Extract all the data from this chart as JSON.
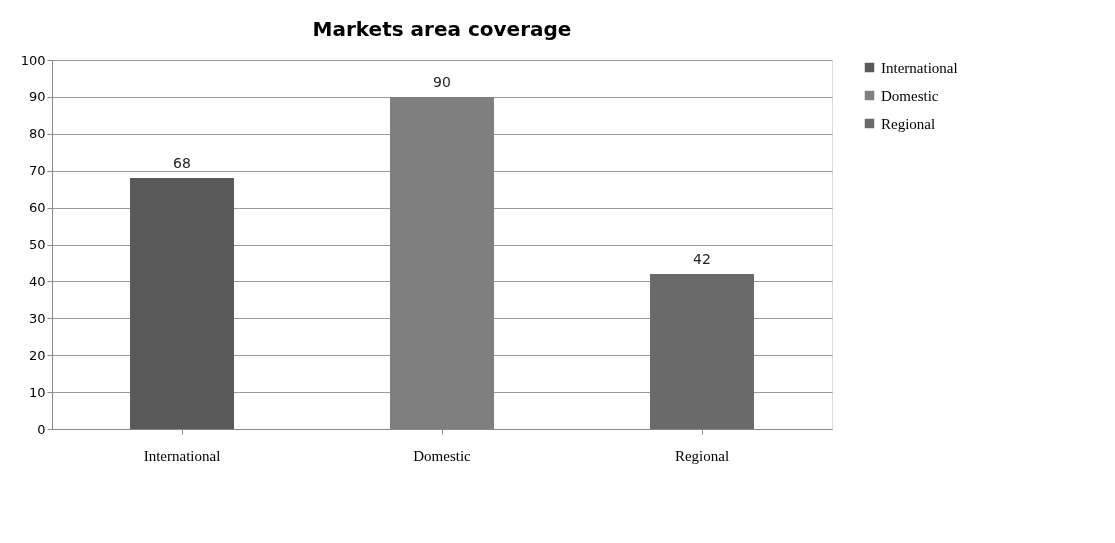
{
  "chart_data": {
    "type": "bar",
    "title": "Markets area coverage",
    "categories": [
      "International",
      "Domestic",
      "Regional"
    ],
    "series": [
      {
        "name": "International",
        "color": "#595959",
        "values": [
          68,
          null,
          null
        ]
      },
      {
        "name": "Domestic",
        "color": "#7f7f7f",
        "values": [
          null,
          90,
          null
        ]
      },
      {
        "name": "Regional",
        "color": "#6a6a6a",
        "values": [
          null,
          null,
          42
        ]
      }
    ],
    "ylim": [
      0,
      100
    ],
    "yticks": [
      0,
      10,
      20,
      30,
      40,
      50,
      60,
      70,
      80,
      90,
      100
    ],
    "grid": "y",
    "legend": "right",
    "data_labels": true
  }
}
